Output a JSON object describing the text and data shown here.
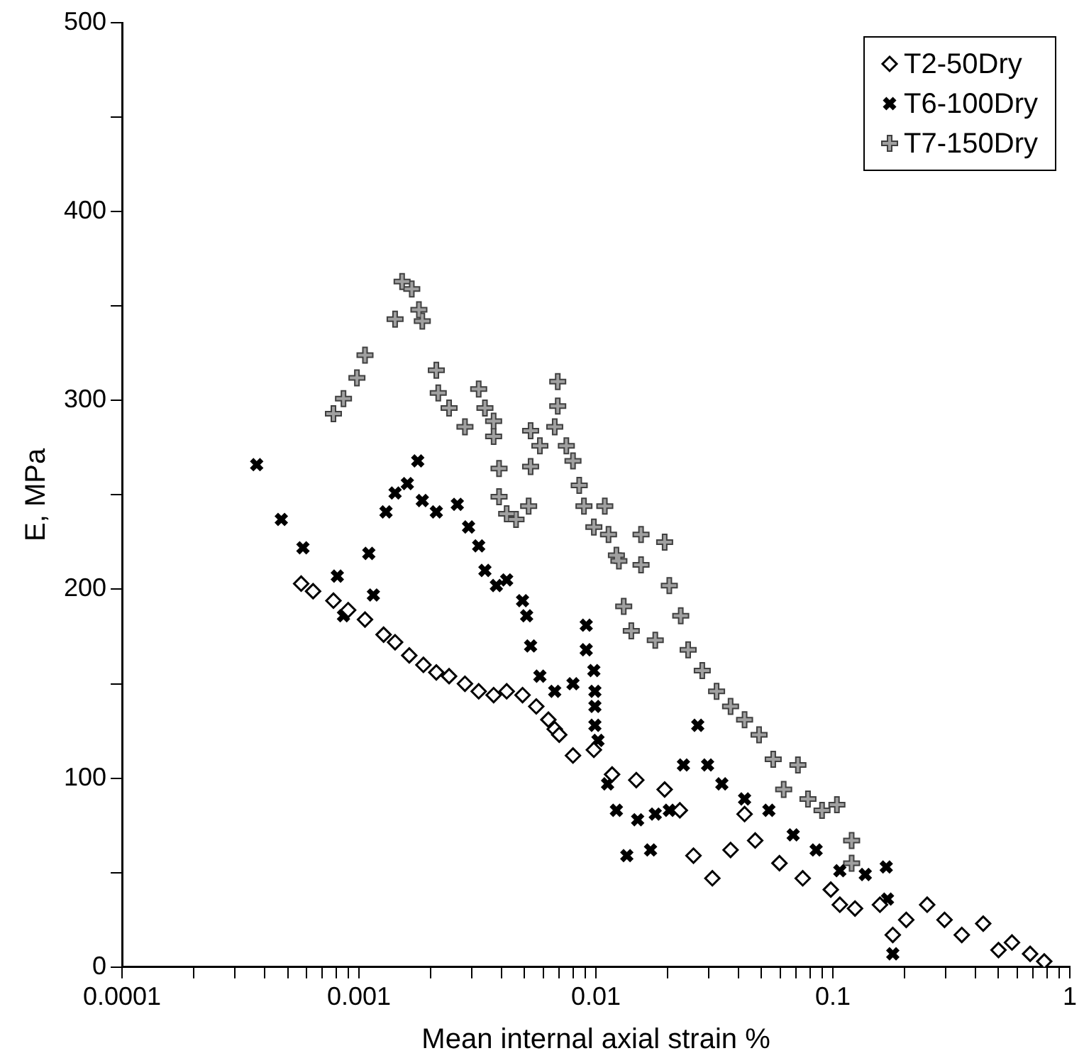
{
  "chart_data": {
    "type": "scatter",
    "xlabel": "Mean internal axial strain %",
    "ylabel": "E, MPa",
    "log": "x",
    "grid": false,
    "legend": "top right",
    "xlim": [
      0.0001,
      1
    ],
    "ylim": [
      0,
      500
    ],
    "xticks": [
      0.0001,
      {
        "value": 0.0002,
        "label": null
      },
      {
        "value": 0.0003,
        "label": null
      },
      {
        "value": 0.0004,
        "label": null
      },
      {
        "value": 0.0005,
        "label": null
      },
      {
        "value": 0.0006,
        "label": null
      },
      {
        "value": 0.0007,
        "label": null
      },
      {
        "value": 0.0008,
        "label": null
      },
      {
        "value": 0.0009,
        "label": null
      },
      0.001,
      {
        "value": 0.002,
        "label": null
      },
      {
        "value": 0.003,
        "label": null
      },
      {
        "value": 0.004,
        "label": null
      },
      {
        "value": 0.005,
        "label": null
      },
      {
        "value": 0.006,
        "label": null
      },
      {
        "value": 0.007,
        "label": null
      },
      {
        "value": 0.008,
        "label": null
      },
      {
        "value": 0.009,
        "label": null
      },
      0.01,
      {
        "value": 0.02,
        "label": null
      },
      {
        "value": 0.03,
        "label": null
      },
      {
        "value": 0.04,
        "label": null
      },
      {
        "value": 0.05,
        "label": null
      },
      {
        "value": 0.06,
        "label": null
      },
      {
        "value": 0.07,
        "label": null
      },
      {
        "value": 0.08,
        "label": null
      },
      {
        "value": 0.09,
        "label": null
      },
      0.1,
      {
        "value": 0.2,
        "label": null
      },
      {
        "value": 0.3,
        "label": null
      },
      {
        "value": 0.4,
        "label": null
      },
      {
        "value": 0.5,
        "label": null
      },
      {
        "value": 0.6,
        "label": null
      },
      {
        "value": 0.7,
        "label": null
      },
      {
        "value": 0.8,
        "label": null
      },
      {
        "value": 0.9,
        "label": null
      },
      1
    ],
    "yticks": [
      0,
      {
        "value": 50,
        "label": null
      },
      100,
      {
        "value": 150,
        "label": null
      },
      200,
      {
        "value": 250,
        "label": null
      },
      300,
      {
        "value": 350,
        "label": null
      },
      400,
      {
        "value": 450,
        "label": null
      },
      500
    ],
    "series": [
      {
        "name": "T2-50Dry",
        "color": "#ffffff",
        "marker": "diamond",
        "x": [
          0.00057,
          0.00064,
          0.00078,
          0.0009,
          0.00106,
          0.00127,
          0.00142,
          0.00163,
          0.00187,
          0.00212,
          0.0024,
          0.0028,
          0.0032,
          0.0037,
          0.0042,
          0.0049,
          0.0056,
          0.0063,
          0.0067,
          0.007,
          0.008,
          0.0098,
          0.0117,
          0.0148,
          0.0195,
          0.0226,
          0.0258,
          0.031,
          0.037,
          0.0424,
          0.047,
          0.0595,
          0.0746,
          0.098,
          0.107,
          0.124,
          0.158,
          0.179,
          0.204,
          0.25,
          0.296,
          0.35,
          0.431,
          0.5,
          0.57,
          0.68,
          0.78
        ],
        "values": [
          203,
          199,
          194,
          189,
          184,
          176,
          172,
          165,
          160,
          156,
          154,
          150,
          146,
          144,
          146,
          144,
          138,
          131,
          126,
          123,
          112,
          115,
          102,
          99,
          94,
          83,
          59,
          47,
          62,
          81,
          67,
          55,
          47,
          41,
          33,
          31,
          33,
          17,
          25,
          33,
          25,
          17,
          23,
          9,
          13,
          7,
          3
        ]
      },
      {
        "name": "T6-100Dry",
        "color": "#000000",
        "marker": "cross",
        "x": [
          0.00037,
          0.00047,
          0.00058,
          0.00081,
          0.00086,
          0.0011,
          0.00115,
          0.0013,
          0.00142,
          0.0016,
          0.00177,
          0.00185,
          0.00212,
          0.0026,
          0.0029,
          0.0032,
          0.0034,
          0.0038,
          0.0042,
          0.0049,
          0.0051,
          0.0053,
          0.0058,
          0.0067,
          0.008,
          0.0091,
          0.0091,
          0.0098,
          0.0099,
          0.0099,
          0.0099,
          0.0102,
          0.0112,
          0.0122,
          0.0135,
          0.015,
          0.017,
          0.0178,
          0.0204,
          0.0234,
          0.0269,
          0.0296,
          0.034,
          0.0424,
          0.0537,
          0.068,
          0.085,
          0.107,
          0.137,
          0.168,
          0.17,
          0.179
        ],
        "values": [
          266,
          237,
          222,
          207,
          186,
          219,
          197,
          241,
          251,
          256,
          268,
          247,
          241,
          245,
          233,
          223,
          210,
          202,
          205,
          194,
          186,
          170,
          154,
          146,
          150,
          181,
          168,
          157,
          146,
          138,
          128,
          120,
          97,
          83,
          59,
          78,
          62,
          81,
          83,
          107,
          128,
          107,
          97,
          89,
          83,
          70,
          62,
          51,
          49,
          53,
          36,
          7
        ]
      },
      {
        "name": "T7-150Dry",
        "color": "#a0a0a0",
        "marker": "plus",
        "x": [
          0.00078,
          0.00086,
          0.00098,
          0.00106,
          0.00142,
          0.00152,
          0.00167,
          0.00179,
          0.00185,
          0.00212,
          0.00216,
          0.0024,
          0.0028,
          0.0032,
          0.0034,
          0.0037,
          0.0037,
          0.0039,
          0.0039,
          0.0042,
          0.0046,
          0.0052,
          0.0053,
          0.0053,
          0.0058,
          0.0067,
          0.0069,
          0.0069,
          0.0075,
          0.008,
          0.0085,
          0.0089,
          0.0098,
          0.0109,
          0.0113,
          0.0122,
          0.0125,
          0.0131,
          0.0141,
          0.0155,
          0.0155,
          0.0178,
          0.0195,
          0.0204,
          0.0228,
          0.0245,
          0.0281,
          0.0323,
          0.037,
          0.0424,
          0.0488,
          0.056,
          0.062,
          0.0712,
          0.0785,
          0.09,
          0.104,
          0.12,
          0.12
        ],
        "values": [
          293,
          301,
          312,
          324,
          343,
          363,
          359,
          348,
          342,
          316,
          304,
          296,
          286,
          306,
          296,
          289,
          281,
          264,
          249,
          240,
          237,
          244,
          265,
          284,
          276,
          286,
          310,
          297,
          276,
          268,
          255,
          244,
          233,
          244,
          229,
          218,
          215,
          191,
          178,
          229,
          213,
          173,
          225,
          202,
          186,
          168,
          157,
          146,
          138,
          131,
          123,
          110,
          94,
          107,
          89,
          83,
          86,
          67,
          55
        ]
      }
    ]
  }
}
